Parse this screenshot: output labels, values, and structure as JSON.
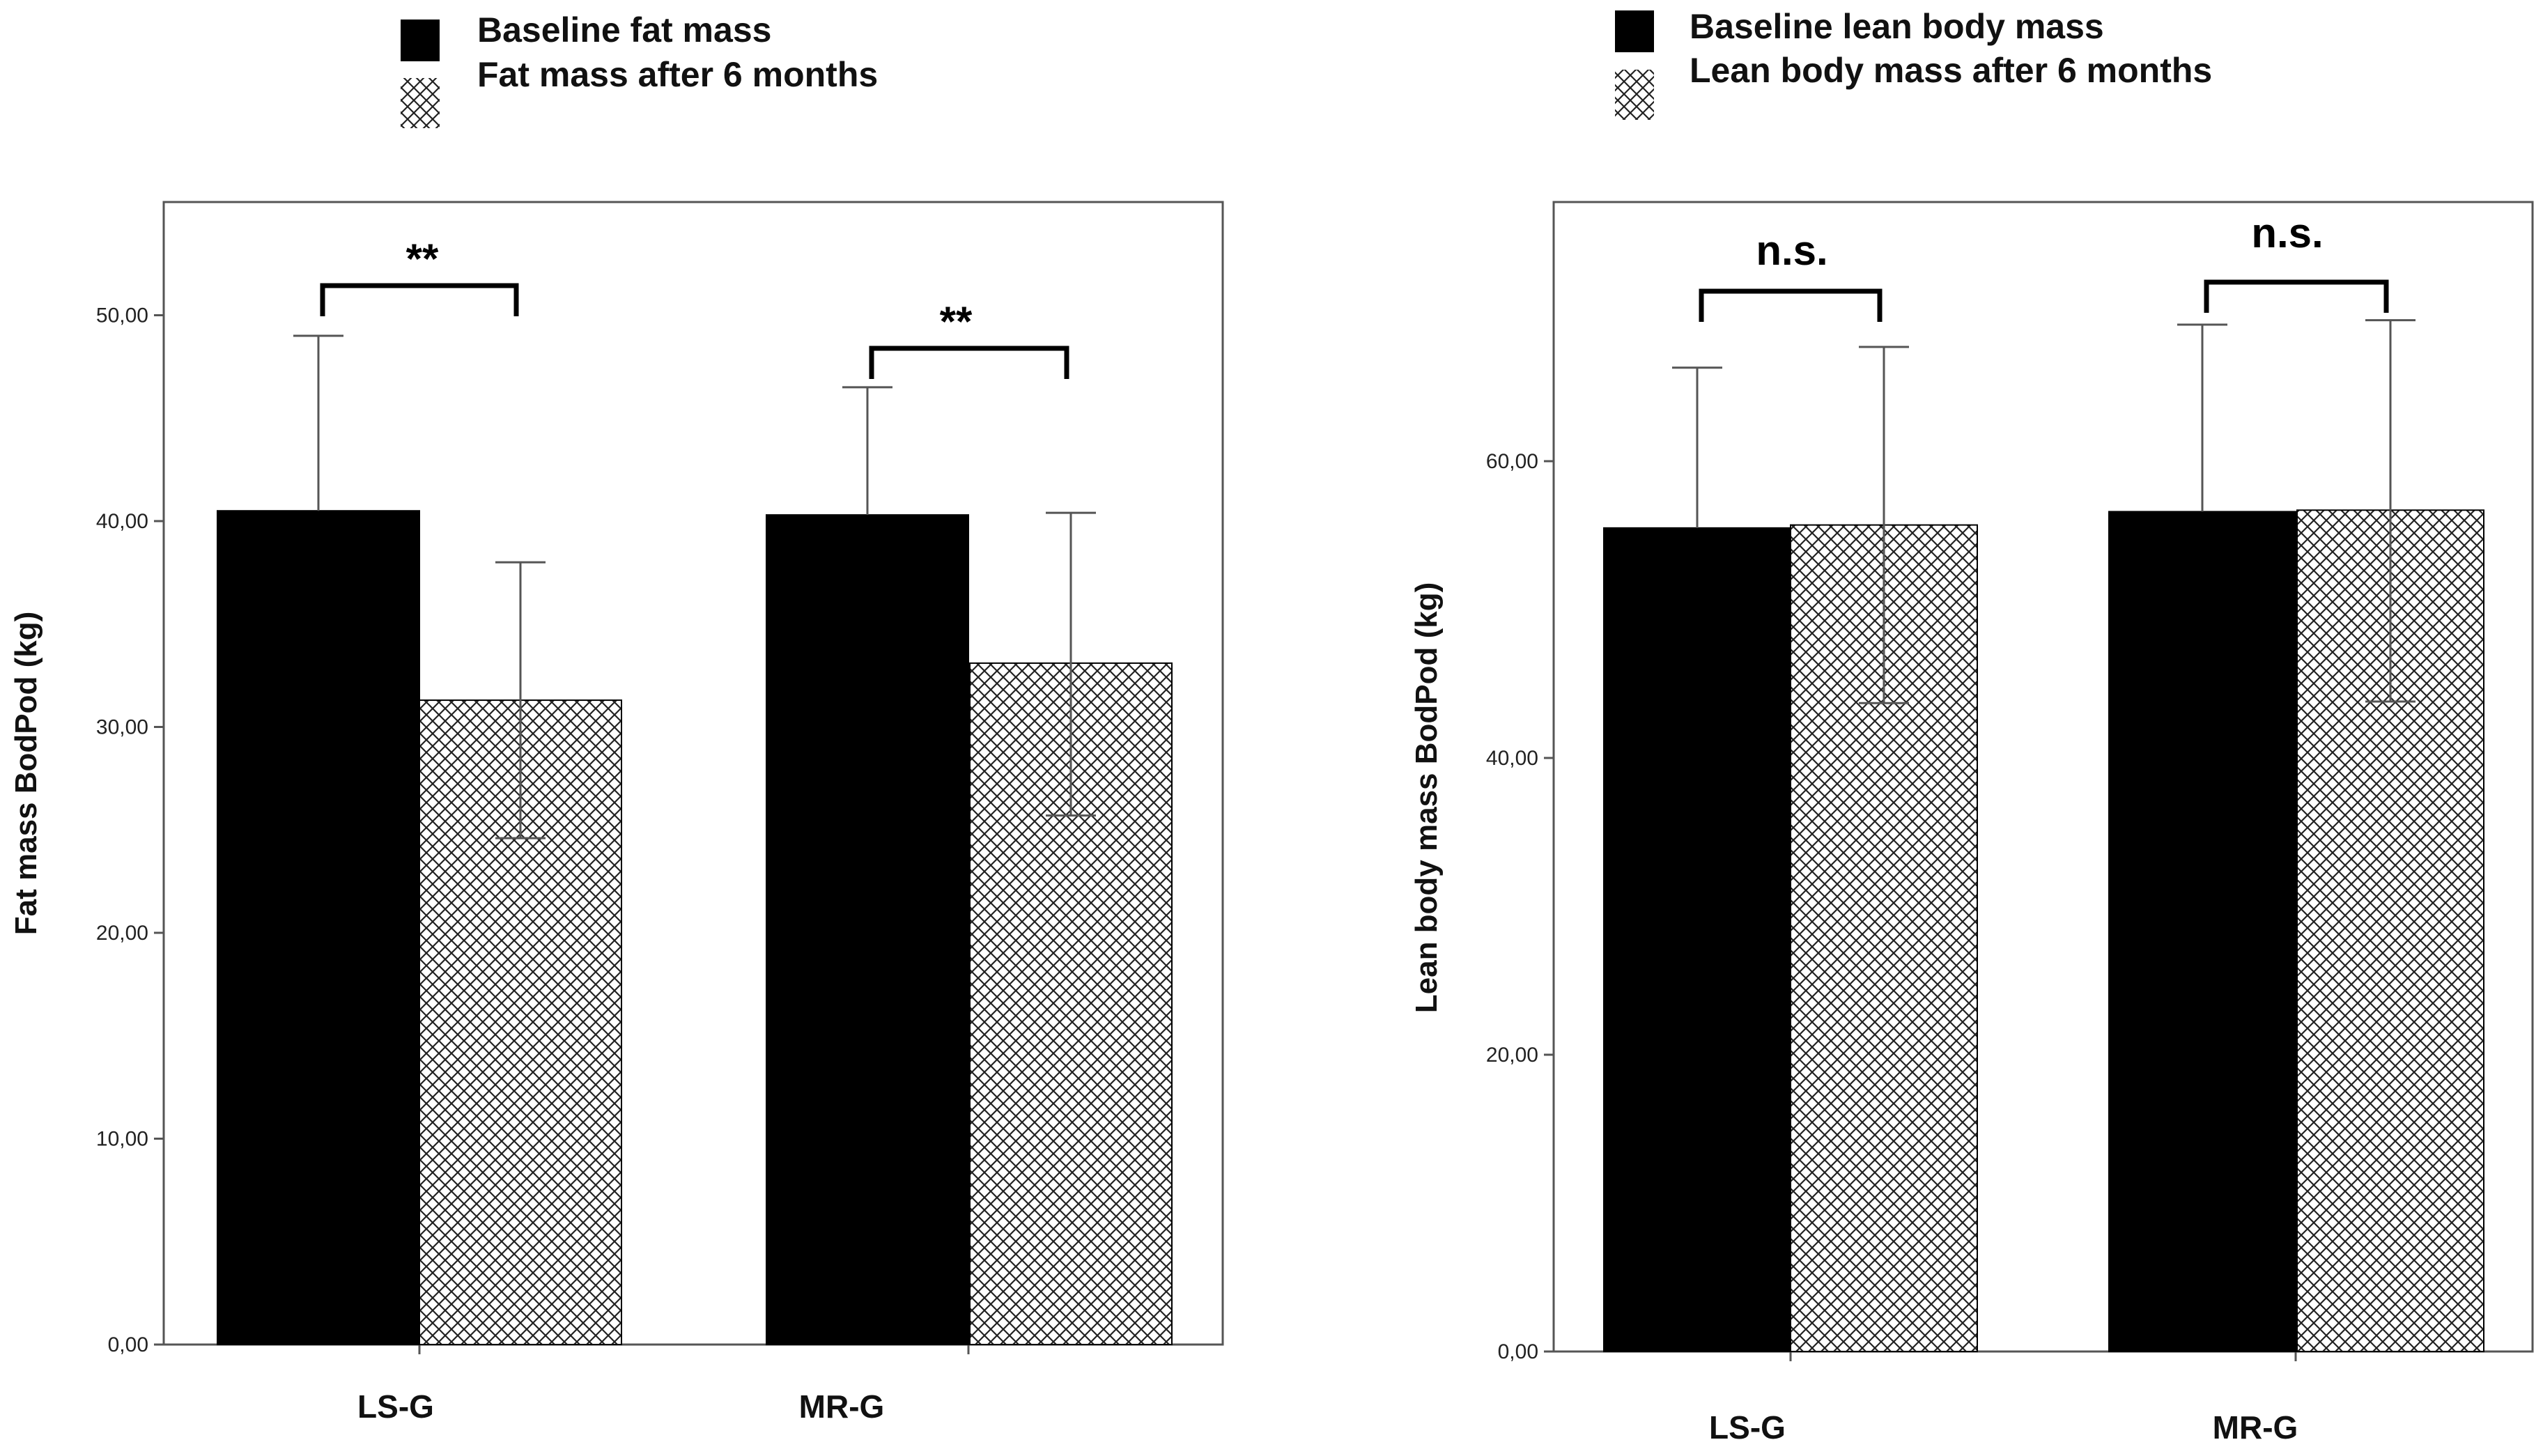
{
  "chart_data": [
    {
      "type": "bar",
      "ylabel": "Fat mass BodPod (kg)",
      "xlabel": "",
      "categories": [
        "LS-G",
        "MR-G"
      ],
      "series": [
        {
          "name": "Baseline fat mass",
          "values": [
            40.5,
            40.3
          ],
          "error_upper": [
            49.0,
            46.5
          ],
          "error_lower": [
            null,
            null
          ],
          "fill": "solid"
        },
        {
          "name": "Fat mass after 6 months",
          "values": [
            31.3,
            33.1
          ],
          "error_upper": [
            38.0,
            40.4
          ],
          "error_lower": [
            24.6,
            25.7
          ],
          "fill": "crosshatch"
        }
      ],
      "ylim": [
        0,
        55
      ],
      "yticks": [
        0,
        10,
        20,
        30,
        40,
        50
      ],
      "ytick_labels": [
        "0,00",
        "10,00",
        "20,00",
        "30,00",
        "40,00",
        "50,00"
      ],
      "significance": [
        "**",
        "**"
      ],
      "legend": [
        "Baseline fat mass",
        "Fat mass after 6 months"
      ],
      "legend_position": "top-left"
    },
    {
      "type": "bar",
      "ylabel": "Lean body mass BodPod (kg)",
      "xlabel": "",
      "categories": [
        "LS-G",
        "MR-G"
      ],
      "series": [
        {
          "name": "Baseline lean body mass",
          "values": [
            55.5,
            56.6
          ],
          "error_upper": [
            66.3,
            69.2
          ],
          "error_lower": [
            null,
            null
          ],
          "fill": "solid"
        },
        {
          "name": "Lean body mass after 6 months",
          "values": [
            55.7,
            56.7
          ],
          "error_upper": [
            67.7,
            69.5
          ],
          "error_lower": [
            43.7,
            43.8
          ],
          "fill": "crosshatch"
        }
      ],
      "ylim": [
        0,
        77.5
      ],
      "yticks": [
        0,
        20,
        40,
        60
      ],
      "ytick_labels": [
        "0,00",
        "20,00",
        "40,00",
        "60,00"
      ],
      "significance": [
        "n.s.",
        "n.s."
      ],
      "legend": [
        "Baseline lean body mass",
        "Lean body mass after 6 months"
      ],
      "legend_position": "top-left"
    }
  ],
  "colors": {
    "solid_bar": "#000000",
    "hatch_bar": "#ffffff",
    "hatch_line": "#222222",
    "error_bar": "#555555",
    "frame": "#555555"
  }
}
